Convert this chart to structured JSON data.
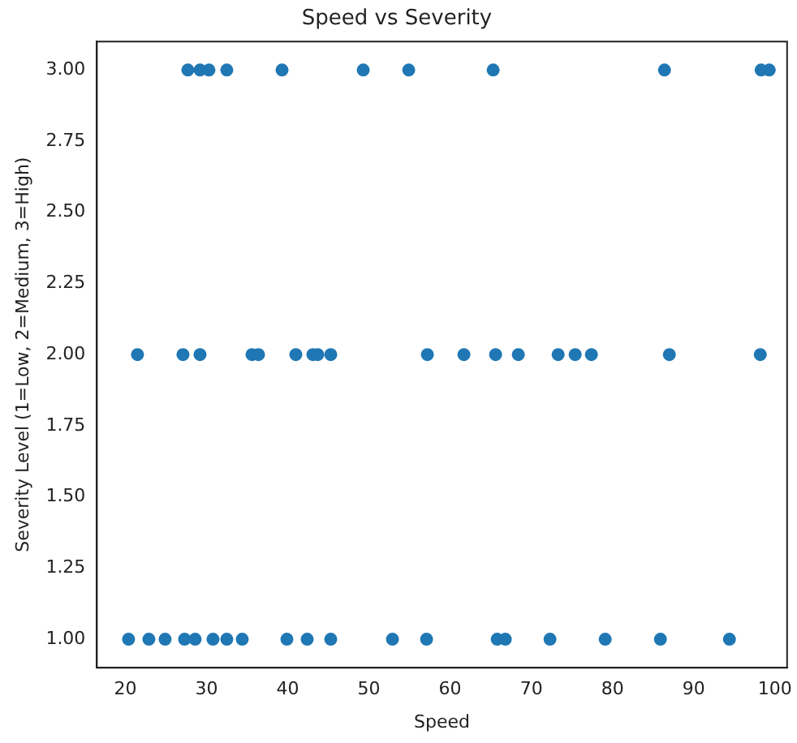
{
  "chart_data": {
    "type": "scatter",
    "title": "Speed vs Severity",
    "xlabel": "Speed",
    "ylabel": "Severity Level (1=Low, 2=Medium, 3=High)",
    "series": [
      {
        "color": "#1f77b4",
        "x": [
          20.4,
          22.9,
          24.9,
          27.3,
          28.6,
          30.8,
          32.5,
          34.4,
          39.9,
          42.4,
          45.3,
          52.9,
          57.1,
          65.8,
          66.8,
          72.3,
          79.1,
          85.9,
          94.4,
          21.5,
          27.1,
          29.2,
          35.6,
          36.4,
          41.0,
          43.1,
          43.7,
          45.3,
          57.2,
          61.7,
          65.6,
          68.4,
          73.3,
          75.4,
          77.4,
          87.0,
          98.2,
          27.7,
          29.2,
          30.3,
          32.5,
          39.3,
          49.3,
          54.9,
          65.3,
          86.4,
          98.3,
          99.3
        ],
        "values": [
          1,
          1,
          1,
          1,
          1,
          1,
          1,
          1,
          1,
          1,
          1,
          1,
          1,
          1,
          1,
          1,
          1,
          1,
          1,
          2,
          2,
          2,
          2,
          2,
          2,
          2,
          2,
          2,
          2,
          2,
          2,
          2,
          2,
          2,
          2,
          2,
          2,
          3,
          3,
          3,
          3,
          3,
          3,
          3,
          3,
          3,
          3,
          3
        ]
      }
    ],
    "marker": "circle",
    "grid": false,
    "legend": false,
    "xlim": [
      16.5,
      101.5
    ],
    "xticks": [
      20,
      30,
      40,
      50,
      60,
      70,
      80,
      90,
      100
    ],
    "ylim": [
      0.9,
      3.1
    ],
    "yticks": [
      {
        "value": 1,
        "label": "1.00"
      },
      {
        "value": 1.25,
        "label": "1.25"
      },
      {
        "value": 1.5,
        "label": "1.50"
      },
      {
        "value": 1.75,
        "label": "1.75"
      },
      {
        "value": 2,
        "label": "2.00"
      },
      {
        "value": 2.25,
        "label": "2.25"
      },
      {
        "value": 2.5,
        "label": "2.50"
      },
      {
        "value": 2.75,
        "label": "2.75"
      },
      {
        "value": 3,
        "label": "3.00"
      }
    ]
  }
}
